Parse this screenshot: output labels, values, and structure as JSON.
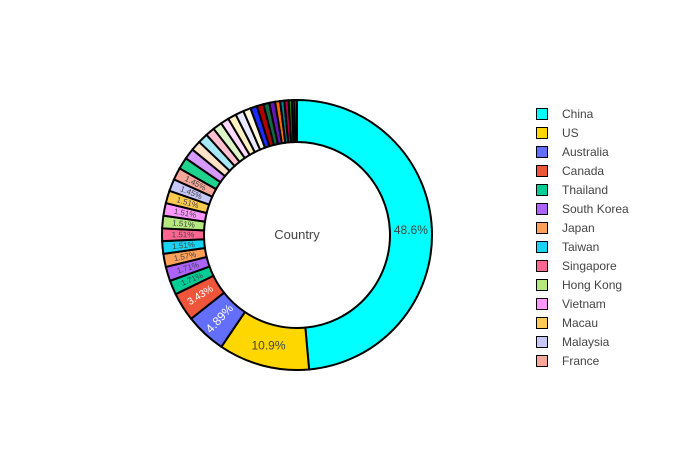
{
  "chart_data": {
    "type": "pie",
    "hole_text": "Country",
    "legend": {
      "placement": "right"
    },
    "slices": [
      {
        "label": "China",
        "value": 48.6,
        "text": "48.6%",
        "color": "#00FFFF"
      },
      {
        "label": "US",
        "value": 10.9,
        "text": "10.9%",
        "color": "#FFD700"
      },
      {
        "label": "Australia",
        "value": 4.89,
        "text": "4.89%",
        "color": "#636EFA"
      },
      {
        "label": "Canada",
        "value": 3.43,
        "text": "3.43%",
        "color": "#EF553B"
      },
      {
        "label": "Thailand",
        "value": 1.71,
        "text": "1.71%",
        "color": "#00CC96"
      },
      {
        "label": "South Korea",
        "value": 1.71,
        "text": "1.71%",
        "color": "#AB63FA"
      },
      {
        "label": "Japan",
        "value": 1.57,
        "text": "1.57%",
        "color": "#FFA15A"
      },
      {
        "label": "Taiwan",
        "value": 1.51,
        "text": "1.51%",
        "color": "#19D3F3"
      },
      {
        "label": "Singapore",
        "value": 1.51,
        "text": "1.51%",
        "color": "#FF6692"
      },
      {
        "label": "Hong Kong",
        "value": 1.51,
        "text": "1.51%",
        "color": "#B6E880"
      },
      {
        "label": "Vietnam",
        "value": 1.51,
        "text": "1.51%",
        "color": "#FF97FF"
      },
      {
        "label": "Macau",
        "value": 1.51,
        "text": "1.51%",
        "color": "#FECB52"
      },
      {
        "label": "Malaysia",
        "value": 1.45,
        "text": "1.45%",
        "color": "#C6C8FA"
      },
      {
        "label": "France",
        "value": 1.45,
        "text": "1.45%",
        "color": "#F7A79A"
      },
      {
        "label": "",
        "value": 1.4,
        "text": "",
        "color": "#1FD28E"
      },
      {
        "label": "",
        "value": 1.3,
        "text": "",
        "color": "#D49AFF"
      },
      {
        "label": "",
        "value": 1.2,
        "text": "",
        "color": "#FFE3C7"
      },
      {
        "label": "",
        "value": 1.2,
        "text": "",
        "color": "#A8E9F6"
      },
      {
        "label": "",
        "value": 1.1,
        "text": "",
        "color": "#FFC1D0"
      },
      {
        "label": "",
        "value": 1.1,
        "text": "",
        "color": "#DDF5C8"
      },
      {
        "label": "",
        "value": 1.0,
        "text": "",
        "color": "#FFD9FF"
      },
      {
        "label": "",
        "value": 1.0,
        "text": "",
        "color": "#FFF0C3"
      },
      {
        "label": "",
        "value": 1.0,
        "text": "",
        "color": "#E8E9FF"
      },
      {
        "label": "",
        "value": 0.9,
        "text": "",
        "color": "#FFF8DE"
      },
      {
        "label": "",
        "value": 0.8,
        "text": "",
        "color": "#1C2BFF"
      },
      {
        "label": "",
        "value": 0.8,
        "text": "",
        "color": "#B20000"
      },
      {
        "label": "",
        "value": 0.7,
        "text": "",
        "color": "#0C6B46"
      },
      {
        "label": "",
        "value": 0.7,
        "text": "",
        "color": "#6516B8"
      },
      {
        "label": "",
        "value": 0.6,
        "text": "",
        "color": "#FF6A00"
      },
      {
        "label": "",
        "value": 0.5,
        "text": "",
        "color": "#007C8E"
      },
      {
        "label": "",
        "value": 0.5,
        "text": "",
        "color": "#B8004A"
      },
      {
        "label": "",
        "value": 0.4,
        "text": "",
        "color": "#3B7A00"
      },
      {
        "label": "",
        "value": 0.3,
        "text": "",
        "color": "#A700A7"
      },
      {
        "label": "",
        "value": 0.3,
        "text": "",
        "color": "#9A7400"
      }
    ]
  }
}
